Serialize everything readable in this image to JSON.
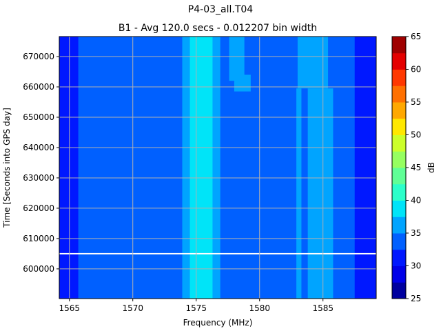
{
  "chart_data": {
    "type": "heatmap",
    "title": "P4-03_all.T04",
    "subtitle": "B1 - Avg 120.0 secs - 0.012207 bin width",
    "xlabel": "Frequency (MHz)",
    "ylabel": "Time [Seconds into GPS day]",
    "xlim": [
      1564.2,
      1589.2
    ],
    "ylim": [
      590200,
      676600
    ],
    "xticks": [
      1565,
      1570,
      1575,
      1580,
      1585
    ],
    "yticks": [
      600000,
      610000,
      620000,
      630000,
      640000,
      650000,
      660000,
      670000
    ],
    "grid": true,
    "colorbar": {
      "label": "dB",
      "levels": [
        25,
        27.5,
        30,
        32.5,
        35,
        37.5,
        40,
        42.5,
        45,
        47.5,
        50,
        52.5,
        55,
        57.5,
        60,
        62.5,
        65
      ],
      "ticks": [
        25,
        30,
        35,
        40,
        45,
        50,
        55,
        60,
        65
      ],
      "colors": [
        "#00009f",
        "#0000e8",
        "#0018ff",
        "#0060ff",
        "#00a4ff",
        "#00e4f8",
        "#2cffca",
        "#60ff96",
        "#96ff60",
        "#ccff2a",
        "#ffe800",
        "#ffa800",
        "#ff7000",
        "#ff3800",
        "#e40000",
        "#9f0000"
      ]
    },
    "background_level_db": 33.75,
    "regions": [
      {
        "f": [
          1564.2,
          1565.7
        ],
        "t": [
          590200,
          676600
        ],
        "db": 31.25
      },
      {
        "f": [
          1587.5,
          1589.2
        ],
        "t": [
          590200,
          676600
        ],
        "db": 31.25
      },
      {
        "f": [
          1573.9,
          1574.5
        ],
        "t": [
          590200,
          676600
        ],
        "db": 36.25
      },
      {
        "f": [
          1574.5,
          1576.3
        ],
        "t": [
          590200,
          676600
        ],
        "db": 38.75
      },
      {
        "f": [
          1576.3,
          1576.9
        ],
        "t": [
          590200,
          676600
        ],
        "db": 36.25
      },
      {
        "f": [
          1577.6,
          1578.8
        ],
        "t": [
          662000,
          676600
        ],
        "db": 36.25
      },
      {
        "f": [
          1578.0,
          1579.3
        ],
        "t": [
          658500,
          664000
        ],
        "db": 36.25
      },
      {
        "f": [
          1582.9,
          1583.3
        ],
        "t": [
          590200,
          659500
        ],
        "db": 36.25
      },
      {
        "f": [
          1583.8,
          1585.8
        ],
        "t": [
          590200,
          659500
        ],
        "db": 36.25
      },
      {
        "f": [
          1583.0,
          1585.4
        ],
        "t": [
          659500,
          676600
        ],
        "db": 36.25
      }
    ],
    "data_gaps": [
      605000
    ]
  }
}
